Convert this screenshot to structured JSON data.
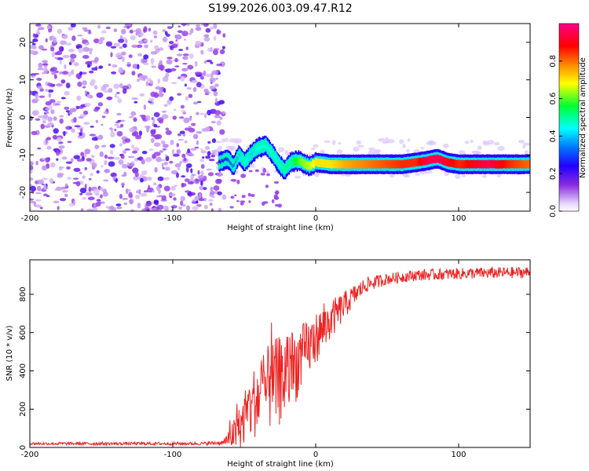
{
  "title": "S199.2026.003.09.47.R12",
  "chart_data": [
    {
      "type": "heatmap",
      "xlabel": "Height of straight line (km)",
      "ylabel": "Frequency (Hz)",
      "xlim": [
        -200,
        150
      ],
      "ylim": [
        -25,
        25
      ],
      "x_ticks": [
        -200,
        -100,
        0,
        100
      ],
      "x_tick_labels": [
        "-200",
        "-100",
        "0",
        "100"
      ],
      "y_ticks": [
        -20,
        -10,
        0,
        10,
        20
      ],
      "y_tick_labels": [
        "-20",
        "-10",
        "0",
        "10",
        "20"
      ],
      "colorbar": {
        "label": "Normalized spectral amplitude",
        "range": [
          0.0,
          1.0
        ],
        "ticks": [
          0.0,
          0.2,
          0.4,
          0.6,
          0.8
        ],
        "tick_labels": [
          "0.0",
          "0.2",
          "0.4",
          "0.6",
          "0.8"
        ]
      },
      "noise_region_x": [
        -200,
        -70
      ],
      "signal_track": [
        {
          "x": -68,
          "f": -12.0,
          "amp": 0.25
        },
        {
          "x": -62,
          "f": -11.0,
          "amp": 0.3
        },
        {
          "x": -58,
          "f": -13.0,
          "amp": 0.35
        },
        {
          "x": -54,
          "f": -10.0,
          "amp": 0.4
        },
        {
          "x": -50,
          "f": -12.0,
          "amp": 0.45
        },
        {
          "x": -45,
          "f": -9.5,
          "amp": 0.4
        },
        {
          "x": -40,
          "f": -8.0,
          "amp": 0.45
        },
        {
          "x": -35,
          "f": -7.5,
          "amp": 0.45
        },
        {
          "x": -30,
          "f": -10.0,
          "amp": 0.45
        },
        {
          "x": -26,
          "f": -12.5,
          "amp": 0.45
        },
        {
          "x": -22,
          "f": -14.0,
          "amp": 0.5
        },
        {
          "x": -18,
          "f": -12.0,
          "amp": 0.5
        },
        {
          "x": -12,
          "f": -11.5,
          "amp": 0.6
        },
        {
          "x": -5,
          "f": -13.0,
          "amp": 0.65
        },
        {
          "x": 0,
          "f": -12.0,
          "amp": 0.7
        },
        {
          "x": 10,
          "f": -12.5,
          "amp": 0.7
        },
        {
          "x": 20,
          "f": -12.5,
          "amp": 0.75
        },
        {
          "x": 40,
          "f": -12.5,
          "amp": 0.8
        },
        {
          "x": 60,
          "f": -12.5,
          "amp": 0.85
        },
        {
          "x": 70,
          "f": -12.0,
          "amp": 0.85
        },
        {
          "x": 78,
          "f": -11.5,
          "amp": 0.95
        },
        {
          "x": 85,
          "f": -11.0,
          "amp": 0.95
        },
        {
          "x": 92,
          "f": -12.0,
          "amp": 0.9
        },
        {
          "x": 100,
          "f": -12.5,
          "amp": 0.85
        },
        {
          "x": 110,
          "f": -12.5,
          "amp": 0.9
        },
        {
          "x": 120,
          "f": -12.5,
          "amp": 0.95
        },
        {
          "x": 135,
          "f": -12.5,
          "amp": 0.85
        },
        {
          "x": 150,
          "f": -12.5,
          "amp": 0.8
        }
      ]
    },
    {
      "type": "line",
      "xlabel": "Height of straight line (km)",
      "ylabel": "SNR (10 * v/v)",
      "xlim": [
        -200,
        150
      ],
      "ylim": [
        0,
        980
      ],
      "x_ticks": [
        -200,
        -100,
        0,
        100
      ],
      "x_tick_labels": [
        "-200",
        "-100",
        "0",
        "100"
      ],
      "y_ticks": [
        0,
        200,
        400,
        600,
        800
      ],
      "y_tick_labels": [
        "0",
        "200",
        "400",
        "600",
        "800"
      ],
      "series": [
        {
          "name": "SNR",
          "color": "#ee2222",
          "envelope_x": [
            -200,
            -80,
            -65,
            -55,
            -45,
            -35,
            -25,
            -15,
            -5,
            5,
            15,
            25,
            35,
            50,
            70,
            90,
            110,
            130,
            150
          ],
          "envelope_y": [
            20,
            20,
            25,
            80,
            220,
            300,
            350,
            420,
            520,
            620,
            700,
            780,
            850,
            880,
            900,
            905,
            910,
            912,
            915
          ],
          "noise_amplitude": [
            8,
            8,
            12,
            100,
            180,
            220,
            240,
            200,
            150,
            120,
            90,
            60,
            40,
            30,
            30,
            30,
            30,
            30,
            30
          ]
        }
      ]
    }
  ],
  "colors": {
    "background": "#ffffff",
    "axis": "#000000",
    "line": "#ee2222"
  }
}
